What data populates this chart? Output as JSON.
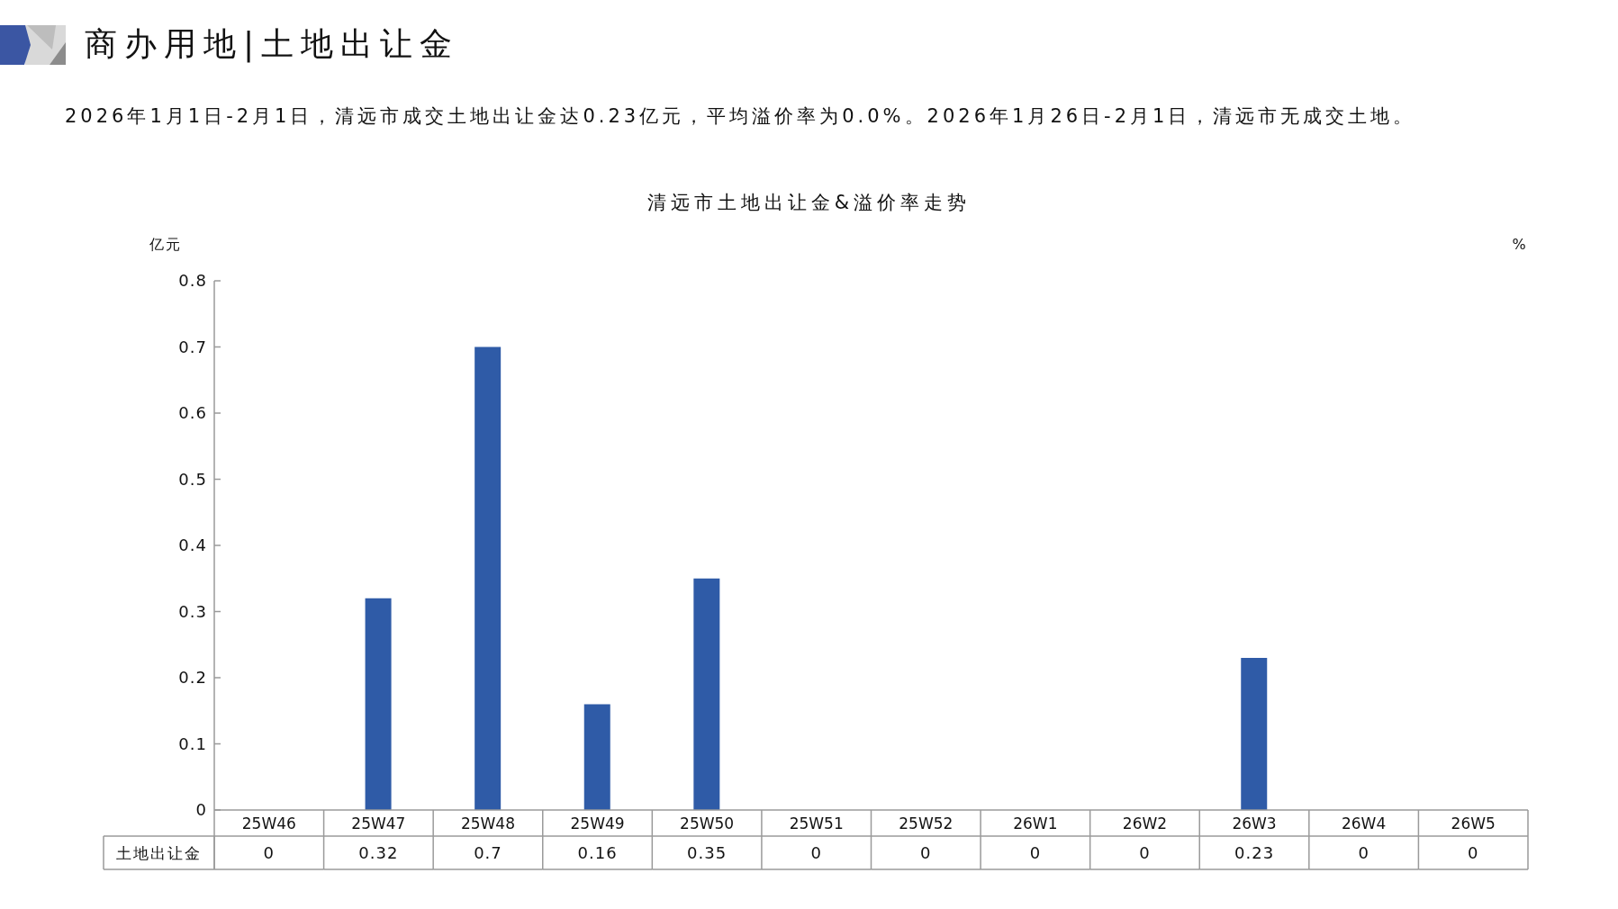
{
  "chart_data": {
    "type": "bar",
    "title": "商办用地|土地出让金",
    "subtitle": "2026年1月1日-2月1日，清远市成交土地出让金达0.23亿元，平均溢价率为0.0%。2026年1月26日-2月1日，清远市无成交土地。",
    "annotations": [
      "清远市土地出让金&溢价率走势"
    ],
    "ylabel": "亿元",
    "y2label": "%",
    "categories": [
      "25W46",
      "25W47",
      "25W48",
      "25W49",
      "25W50",
      "25W51",
      "25W52",
      "26W1",
      "26W2",
      "26W3",
      "26W4",
      "26W5"
    ],
    "series": [
      {
        "name": "土地出让金",
        "color": "#2f5ba7",
        "values": [
          0,
          0.32,
          0.7,
          0.16,
          0.35,
          0,
          0,
          0,
          0,
          0.23,
          0,
          0
        ]
      }
    ],
    "ylim": [
      0,
      0.8
    ],
    "yticks": [
      0,
      0.1,
      0.2,
      0.3,
      0.4,
      0.5,
      0.6,
      0.7,
      0.8
    ],
    "data_labels": true
  }
}
